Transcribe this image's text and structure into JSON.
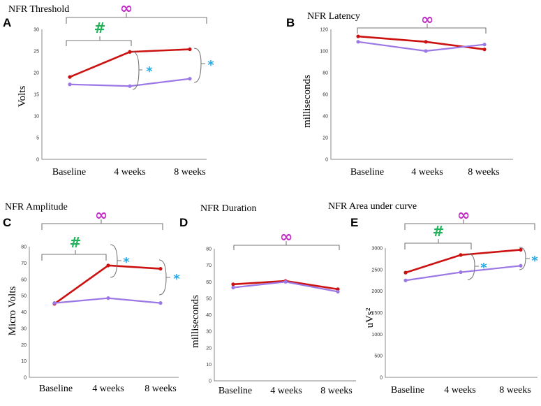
{
  "colors": {
    "series_red": "#cc1111",
    "series_purple": "#9b78e6",
    "infinity": "#c22bc7",
    "hash": "#1fb35a",
    "star": "#22a9e6"
  },
  "chart_data": [
    {
      "id": "A",
      "letter": "A",
      "type": "line",
      "title": "NFR Threshold",
      "ylabel": "Volts",
      "categories": [
        "Baseline",
        "4 weeks",
        "8 weeks"
      ],
      "yticks": [
        0,
        5,
        10,
        15,
        20,
        25,
        30
      ],
      "ylim": [
        0,
        30
      ],
      "series": [
        {
          "name": "red",
          "values": [
            19,
            24.8,
            25.4
          ]
        },
        {
          "name": "purple",
          "values": [
            17.3,
            16.9,
            18.6
          ]
        }
      ],
      "marks": {
        "infinity": "∞",
        "hash": "#",
        "star1": "*",
        "star2": "*"
      }
    },
    {
      "id": "B",
      "letter": "B",
      "type": "line",
      "title": "NFR Latency",
      "ylabel": "milliseconds",
      "categories": [
        "Baseline",
        "4 weeks",
        "8 weeks"
      ],
      "yticks": [
        0,
        20,
        40,
        60,
        80,
        100,
        120
      ],
      "ylim": [
        0,
        120
      ],
      "series": [
        {
          "name": "red",
          "values": [
            113.5,
            108.5,
            101.5
          ]
        },
        {
          "name": "purple",
          "values": [
            108.5,
            100,
            106
          ]
        }
      ],
      "marks": {
        "infinity": "∞"
      }
    },
    {
      "id": "C",
      "letter": "C",
      "type": "line",
      "title": "NFR Amplitude",
      "ylabel": "Micro Volts",
      "categories": [
        "Baseline",
        "4 weeks",
        "8 weeks"
      ],
      "yticks": [
        0,
        10,
        20,
        30,
        40,
        50,
        60,
        70,
        80
      ],
      "ylim": [
        0,
        80
      ],
      "series": [
        {
          "name": "red",
          "values": [
            45,
            68.5,
            66.5
          ]
        },
        {
          "name": "purple",
          "values": [
            45.5,
            48.5,
            45.5
          ]
        }
      ],
      "marks": {
        "infinity": "∞",
        "hash": "#",
        "star1": "*",
        "star2": "*"
      }
    },
    {
      "id": "D",
      "letter": "D",
      "type": "line",
      "title": "NFR Duration",
      "ylabel": "milliseconds",
      "categories": [
        "Baseline",
        "4 weeks",
        "8 weeks"
      ],
      "yticks": [
        0,
        10,
        20,
        30,
        40,
        50,
        60,
        70,
        80
      ],
      "ylim": [
        0,
        80
      ],
      "series": [
        {
          "name": "red",
          "values": [
            58.5,
            60.5,
            55.5
          ]
        },
        {
          "name": "purple",
          "values": [
            56.5,
            60,
            54
          ]
        }
      ],
      "marks": {
        "infinity": "∞"
      }
    },
    {
      "id": "E",
      "letter": "E",
      "type": "line",
      "title": "NFR Area under curve",
      "ylabel": "uVs²",
      "categories": [
        "Baseline",
        "4 weeks",
        "8 weeks"
      ],
      "yticks": [
        0,
        500,
        1000,
        1500,
        2000,
        2500,
        3000
      ],
      "ylim": [
        0,
        3000
      ],
      "series": [
        {
          "name": "red",
          "values": [
            2430,
            2840,
            2960
          ]
        },
        {
          "name": "purple",
          "values": [
            2250,
            2440,
            2590
          ]
        }
      ],
      "marks": {
        "infinity": "∞",
        "hash": "#",
        "star1": "*",
        "star2": "*"
      }
    }
  ]
}
